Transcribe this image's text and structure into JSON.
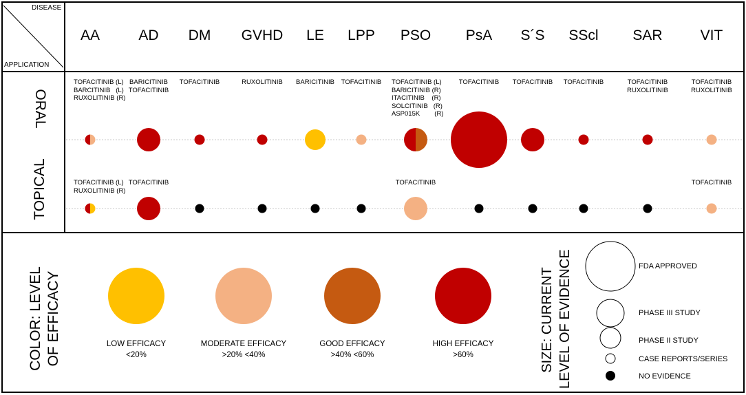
{
  "corner": {
    "disease": "DISEASE",
    "application": "APPLICATION"
  },
  "diseases": [
    "AA",
    "AD",
    "DM",
    "GVHD",
    "LE",
    "LPP",
    "PSO",
    "PsA",
    "S´S",
    "SScl",
    "SAR",
    "VIT"
  ],
  "applications": {
    "oral": "ORAL",
    "topical": "TOPICAL"
  },
  "oral_drugs": [
    "TOFACITINIB (L)\nBARCITINIB   (L)\nRUXOLITINIB (R)",
    "BARICITINIB\nTOFACITINIB",
    "TOFACITINIB",
    "RUXOLITINIB",
    "BARICITINIB",
    "TOFACITINIB",
    "TOFACITINIB (L)\nBARICITINIB (R)\nITACITINIB    (R)\nSOLCITINIB   (R)\nASP015K        (R)",
    "TOFACITINIB",
    "TOFACITINIB",
    "TOFACITINIB",
    "TOFACITINIB\nRUXOLITINIB",
    "TOFACITINIB\nRUXOLITINIB"
  ],
  "topical_drugs": [
    "TOFACITINIB (L)\nRUXOLITINIB (R)",
    "TOFACITINIB",
    "",
    "",
    "",
    "",
    "TOFACITINIB",
    "",
    "",
    "",
    "",
    "TOFACITINIB"
  ],
  "colors": {
    "low": "#FFC000",
    "moderate": "#F4B183",
    "good": "#C55A11",
    "high": "#C00000",
    "none": "#000000"
  },
  "oral_circles": [
    {
      "size": "case",
      "color": "high",
      "right_color": "moderate",
      "split": true
    },
    {
      "size": "phase3",
      "color": "high"
    },
    {
      "size": "case",
      "color": "high"
    },
    {
      "size": "case",
      "color": "high"
    },
    {
      "size": "phase2plus",
      "color": "low"
    },
    {
      "size": "case",
      "color": "moderate"
    },
    {
      "size": "phase3",
      "color": "high",
      "right_color": "good",
      "split": true
    },
    {
      "size": "fda",
      "color": "high"
    },
    {
      "size": "phase3",
      "color": "high"
    },
    {
      "size": "case",
      "color": "high"
    },
    {
      "size": "case",
      "color": "high"
    },
    {
      "size": "case",
      "color": "moderate"
    }
  ],
  "topical_circles": [
    {
      "size": "case",
      "color": "high",
      "right_color": "low",
      "split": true
    },
    {
      "size": "phase3",
      "color": "high"
    },
    {
      "size": "none",
      "color": "none"
    },
    {
      "size": "none",
      "color": "none"
    },
    {
      "size": "none",
      "color": "none"
    },
    {
      "size": "none",
      "color": "none"
    },
    {
      "size": "phase3",
      "color": "moderate"
    },
    {
      "size": "none",
      "color": "none"
    },
    {
      "size": "none",
      "color": "none"
    },
    {
      "size": "none",
      "color": "none"
    },
    {
      "size": "none",
      "color": "none"
    },
    {
      "size": "case",
      "color": "moderate"
    }
  ],
  "legend": {
    "color_title": "COLOR: LEVEL OF EFFICACY",
    "color_title_line1": "COLOR: LEVEL",
    "color_title_line2": "OF EFFICACY",
    "efficacy": [
      {
        "label": "LOW EFFICACY",
        "range": "<20%",
        "color": "low"
      },
      {
        "label": "MODERATE EFFICACY",
        "range": ">20% <40%",
        "color": "moderate"
      },
      {
        "label": "GOOD EFFICACY",
        "range": ">40% <60%",
        "color": "good"
      },
      {
        "label": "HIGH EFFICACY",
        "range": ">60%",
        "color": "high"
      }
    ],
    "size_title_line1": "SIZE: CURRENT",
    "size_title_line2": "LEVEL OF EVIDENCE",
    "evidence": [
      {
        "label": "FDA APPROVED",
        "size": "fda"
      },
      {
        "label": "PHASE III STUDY",
        "size": "phase3"
      },
      {
        "label": "PHASE II STUDY",
        "size": "phase2"
      },
      {
        "label": "CASE REPORTS/SERIES",
        "size": "case"
      },
      {
        "label": "NO EVIDENCE",
        "size": "none"
      }
    ]
  }
}
